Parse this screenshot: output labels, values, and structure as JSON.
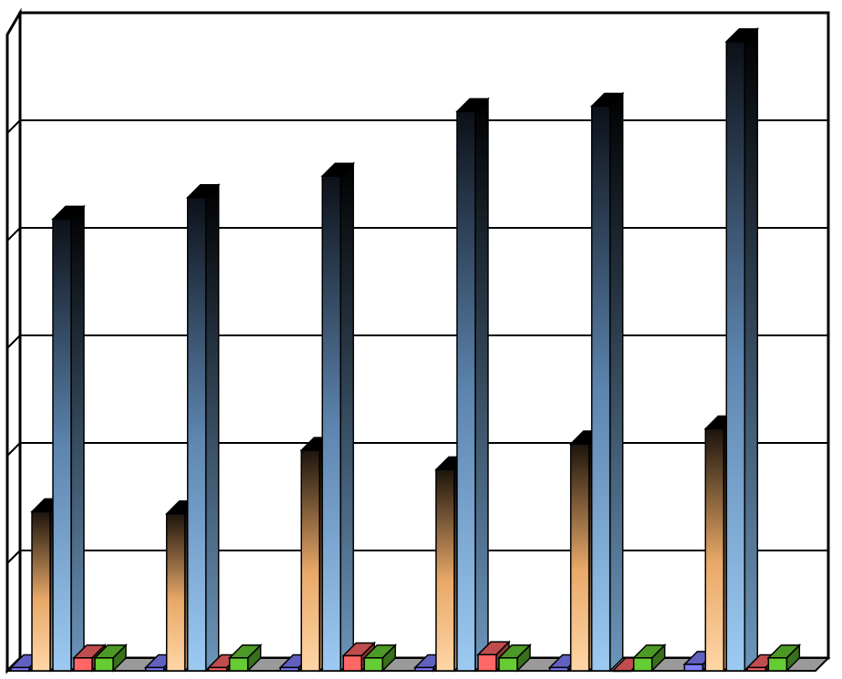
{
  "chart_data": {
    "type": "bar",
    "style": "3d-clustered-columns",
    "title": "",
    "xlabel": "",
    "ylabel": "",
    "ylim": [
      0,
      600
    ],
    "gridlines": [
      0,
      100,
      200,
      300,
      400,
      500,
      600
    ],
    "grid": true,
    "legend": "none",
    "categories": [
      "",
      "",
      "",
      "",
      "",
      ""
    ],
    "series": [
      {
        "name": "",
        "color": "#8080ff",
        "values": [
          3,
          3,
          3,
          3,
          3,
          6
        ]
      },
      {
        "name": "",
        "color": "#ffcc99",
        "values": [
          148,
          146,
          205,
          187,
          211,
          225
        ]
      },
      {
        "name": "",
        "color": "#99ccff",
        "values": [
          420,
          440,
          460,
          520,
          525,
          585
        ]
      },
      {
        "name": "",
        "color": "#ff6666",
        "values": [
          12,
          3,
          14,
          15,
          0,
          3
        ]
      },
      {
        "name": "",
        "color": "#66cc33",
        "values": [
          12,
          12,
          12,
          12,
          12,
          12
        ]
      }
    ]
  }
}
